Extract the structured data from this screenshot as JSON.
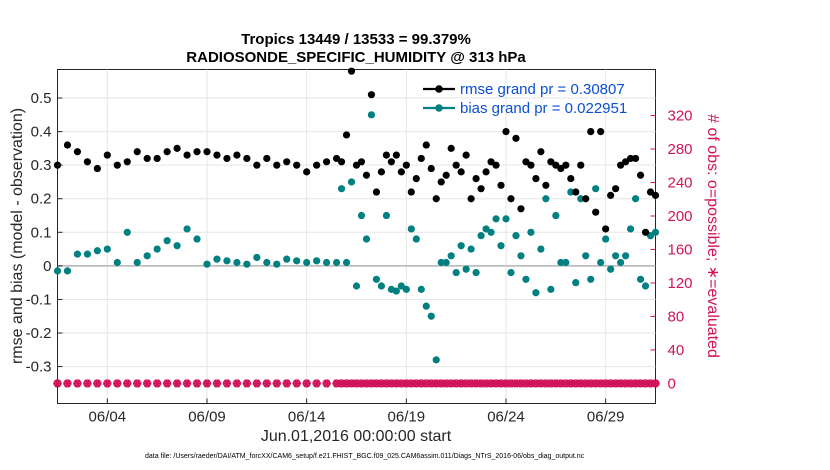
{
  "chart_data": {
    "type": "line",
    "title": "Tropics 13449 / 13533 = 99.379%",
    "subtitle": "RADIOSONDE_SPECIFIC_HUMIDITY @ 313 hPa",
    "xlabel": "Jun.01,2016 00:00:00 start",
    "ylabel": "rmse and bias (model - observation)",
    "ylabel_right": "# of obs: o=possible; ∗=evaluated",
    "footnote": "data file: /Users/raeder/DAI/ATM_forcXX/CAM6_setup/f.e21.FHIST_BGC.f09_025.CAM6assim.011/Diags_NTrS_2016-06/obs_diag_output.nc",
    "xlim": [
      1.0,
      31.0
    ],
    "ylim": [
      -0.41,
      0.585
    ],
    "ylim_right": [
      -24,
      375
    ],
    "x_ticks": [
      3.5,
      8.5,
      13.5,
      18.5,
      23.5,
      28.5
    ],
    "x_tick_labels": [
      "06/04",
      "06/09",
      "06/14",
      "06/19",
      "06/24",
      "06/29"
    ],
    "y_ticks": [
      -0.3,
      -0.2,
      -0.1,
      0,
      0.1,
      0.2,
      0.3,
      0.4,
      0.5
    ],
    "y_tick_labels": [
      "-0.3",
      "-0.2",
      "-0.1",
      "0",
      "0.1",
      "0.2",
      "0.3",
      "0.4",
      "0.5"
    ],
    "y_right_ticks": [
      0,
      40,
      80,
      120,
      160,
      200,
      240,
      280,
      320
    ],
    "y_right_tick_labels": [
      "0",
      "40",
      "80",
      "120",
      "160",
      "200",
      "240",
      "280",
      "320"
    ],
    "legend": [
      "rmse grand pr = 0.30807",
      "bias grand pr = 0.022951"
    ],
    "legend_position": "top-right",
    "colors": {
      "rmse": "#000000",
      "bias": "#008080",
      "counts": "#d0145a",
      "zero_line": "#b3b3b3"
    },
    "x": [
      1.0,
      1.5,
      2.0,
      2.5,
      3.0,
      3.5,
      4.0,
      4.5,
      5.0,
      5.5,
      6.0,
      6.5,
      7.0,
      7.5,
      8.0,
      8.5,
      9.0,
      9.5,
      10.0,
      10.5,
      11.0,
      11.5,
      12.0,
      12.5,
      13.0,
      13.5,
      14.0,
      14.5,
      15.0,
      15.25,
      15.5,
      15.75,
      16.0,
      16.25,
      16.5,
      16.75,
      17.0,
      17.25,
      17.5,
      17.75,
      18.0,
      18.25,
      18.5,
      18.75,
      19.0,
      19.25,
      19.5,
      19.75,
      20.0,
      20.25,
      20.5,
      20.75,
      21.0,
      21.25,
      21.5,
      21.75,
      22.0,
      22.25,
      22.5,
      22.75,
      23.0,
      23.25,
      23.5,
      23.75,
      24.0,
      24.25,
      24.5,
      24.75,
      25.0,
      25.25,
      25.5,
      25.75,
      26.0,
      26.25,
      26.5,
      26.75,
      27.0,
      27.25,
      27.5,
      27.75,
      28.0,
      28.25,
      28.5,
      28.75,
      29.0,
      29.25,
      29.5,
      29.75,
      30.0,
      30.25,
      30.5,
      30.75,
      31.0
    ],
    "series": [
      {
        "name": "rmse",
        "connected": false,
        "values": [
          0.3,
          0.36,
          0.34,
          0.31,
          0.29,
          0.33,
          0.3,
          0.31,
          0.34,
          0.32,
          0.32,
          0.34,
          0.35,
          0.33,
          0.34,
          0.34,
          0.33,
          0.32,
          0.33,
          0.32,
          0.3,
          0.32,
          0.3,
          0.31,
          0.3,
          0.28,
          0.3,
          0.31,
          0.32,
          0.31,
          0.39,
          0.58,
          0.3,
          0.31,
          0.27,
          0.51,
          0.22,
          0.28,
          0.33,
          0.31,
          0.33,
          0.28,
          0.3,
          0.22,
          0.26,
          0.32,
          0.36,
          0.29,
          0.2,
          0.25,
          0.27,
          0.35,
          0.3,
          0.28,
          0.33,
          0.2,
          0.26,
          0.23,
          0.28,
          0.31,
          0.3,
          0.24,
          0.4,
          0.2,
          0.38,
          0.17,
          0.31,
          0.3,
          0.26,
          0.34,
          0.24,
          0.31,
          0.3,
          0.29,
          0.3,
          0.26,
          0.22,
          0.3,
          0.2,
          0.4,
          0.16,
          0.4,
          0.11,
          0.21,
          0.23,
          0.3,
          0.31,
          0.32,
          0.32,
          0.27,
          0.1,
          0.22,
          0.21
        ]
      },
      {
        "name": "bias",
        "connected": false,
        "values": [
          -0.015,
          -0.015,
          0.035,
          0.035,
          0.045,
          0.05,
          0.01,
          0.1,
          0.01,
          0.03,
          0.05,
          0.075,
          0.06,
          0.11,
          0.08,
          0.005,
          0.02,
          0.015,
          0.01,
          0.005,
          0.025,
          0.01,
          0.005,
          0.02,
          0.015,
          0.01,
          0.015,
          0.01,
          0.01,
          0.23,
          0.01,
          0.25,
          -0.06,
          0.15,
          0.08,
          0.45,
          -0.04,
          -0.06,
          0.15,
          -0.07,
          -0.075,
          -0.06,
          -0.07,
          0.11,
          0.08,
          -0.07,
          -0.12,
          -0.15,
          -0.28,
          0.01,
          0.01,
          0.03,
          -0.02,
          0.06,
          -0.01,
          0.05,
          -0.02,
          0.09,
          0.11,
          0.1,
          0.14,
          0.06,
          0.14,
          -0.02,
          0.09,
          0.03,
          -0.04,
          0.1,
          -0.08,
          0.05,
          0.2,
          -0.07,
          0.15,
          0.01,
          0.01,
          0.22,
          -0.05,
          0.2,
          0.03,
          -0.04,
          0.23,
          0.01,
          0.08,
          -0.01,
          0.03,
          0.01,
          0.03,
          0.11,
          0.2,
          -0.04,
          -0.06,
          0.09,
          0.1
        ]
      },
      {
        "name": "possible",
        "marker": "o",
        "values": [
          0,
          0,
          0,
          0,
          0,
          0,
          0,
          0,
          0,
          0,
          0,
          0,
          0,
          0,
          0,
          0,
          0,
          0,
          0,
          0,
          0,
          0,
          0,
          0,
          0,
          0,
          0,
          0,
          0,
          0,
          0,
          0,
          0,
          0,
          0,
          0,
          0,
          0,
          0,
          0,
          0,
          0,
          0,
          0,
          0,
          0,
          0,
          0,
          0,
          0,
          0,
          0,
          0,
          0,
          0,
          0,
          0,
          0,
          0,
          0,
          0,
          0,
          0,
          0,
          0,
          0,
          0,
          0,
          0,
          0,
          0,
          0,
          0,
          0,
          0,
          0,
          0,
          0,
          0,
          0,
          0,
          0,
          0,
          0,
          0,
          0,
          0,
          0,
          0,
          0,
          0,
          0,
          0
        ]
      },
      {
        "name": "evaluated",
        "marker": "*",
        "values": [
          0,
          0,
          0,
          0,
          0,
          0,
          0,
          0,
          0,
          0,
          0,
          0,
          0,
          0,
          0,
          0,
          0,
          0,
          0,
          0,
          0,
          0,
          0,
          0,
          0,
          0,
          0,
          0,
          0,
          0,
          0,
          0,
          0,
          0,
          0,
          0,
          0,
          0,
          0,
          0,
          0,
          0,
          0,
          0,
          0,
          0,
          0,
          0,
          0,
          0,
          0,
          0,
          0,
          0,
          0,
          0,
          0,
          0,
          0,
          0,
          0,
          0,
          0,
          0,
          0,
          0,
          0,
          0,
          0,
          0,
          0,
          0,
          0,
          0,
          0,
          0,
          0,
          0,
          0,
          0,
          0,
          0,
          0,
          0,
          0,
          0,
          0,
          0,
          0,
          0,
          0,
          0,
          0
        ]
      }
    ]
  }
}
